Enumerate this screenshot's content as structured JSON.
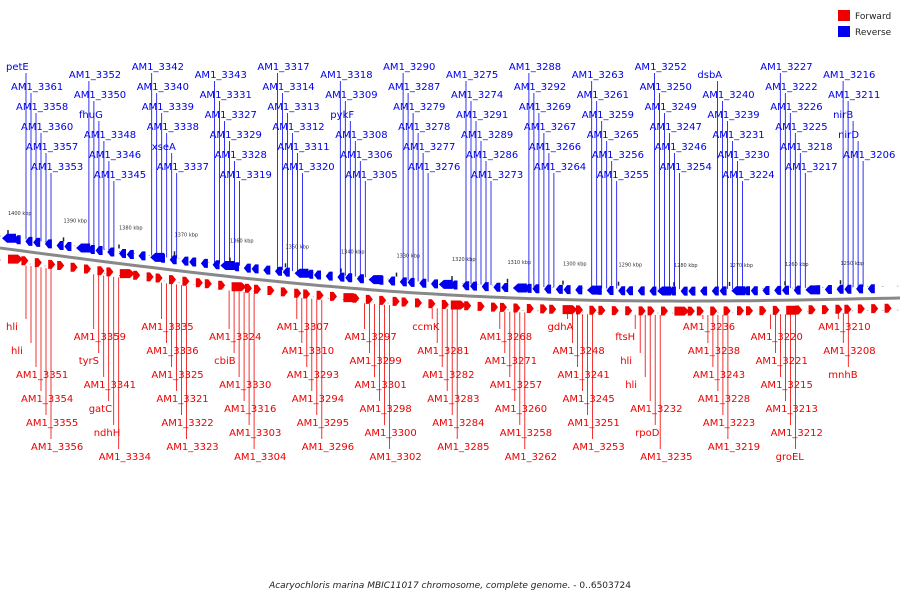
{
  "legend": {
    "forward": {
      "label": "Forward",
      "color": "#ee0000"
    },
    "reverse": {
      "label": "Reverse",
      "color": "#0000ee"
    }
  },
  "caption": {
    "organism": "Acaryochloris marina MBIC11017 chromosome, complete genome.",
    "range": " - 0..6503724"
  },
  "scale_labels": [
    "1400 kbp",
    "1390 kbp",
    "1380 kbp",
    "1370 kbp",
    "1360 kbp",
    "1350 kbp",
    "1340 kbp",
    "1330 kbp",
    "1320 kbp",
    "1310 kbp",
    "1300 kbp",
    "1290 kbp",
    "1280 kbp",
    "1270 kbp",
    "1260 kbp",
    "1250 kbp"
  ],
  "reverse_labels": [
    "petE",
    "AM1_3361",
    "AM1_3358",
    "AM1_3360",
    "AM1_3357",
    "AM1_3353",
    "AM1_3352",
    "AM1_3350",
    "fhuG",
    "AM1_3348",
    "AM1_3346",
    "AM1_3345",
    "AM1_3342",
    "AM1_3340",
    "AM1_3339",
    "AM1_3338",
    "xseA",
    "AM1_3337",
    "AM1_3343",
    "AM1_3331",
    "AM1_3327",
    "AM1_3329",
    "AM1_3328",
    "AM1_3319",
    "AM1_3317",
    "AM1_3314",
    "AM1_3313",
    "AM1_3312",
    "AM1_3311",
    "AM1_3320",
    "AM1_3318",
    "AM1_3309",
    "pykF",
    "AM1_3308",
    "AM1_3306",
    "AM1_3305",
    "AM1_3290",
    "AM1_3287",
    "AM1_3279",
    "AM1_3278",
    "AM1_3277",
    "AM1_3276",
    "AM1_3275",
    "AM1_3274",
    "AM1_3291",
    "AM1_3289",
    "AM1_3286",
    "AM1_3273",
    "AM1_3288",
    "AM1_3292",
    "AM1_3269",
    "AM1_3267",
    "AM1_3266",
    "AM1_3264",
    "AM1_3263",
    "AM1_3261",
    "AM1_3259",
    "AM1_3265",
    "AM1_3256",
    "AM1_3255",
    "AM1_3252",
    "AM1_3250",
    "AM1_3249",
    "AM1_3247",
    "AM1_3246",
    "AM1_3254",
    "dsbA",
    "AM1_3240",
    "AM1_3239",
    "AM1_3231",
    "AM1_3230",
    "AM1_3224",
    "AM1_3227",
    "AM1_3222",
    "AM1_3226",
    "AM1_3225",
    "AM1_3218",
    "AM1_3217",
    "AM1_3216",
    "AM1_3211",
    "nirB",
    "nirD",
    "AM1_3206"
  ],
  "forward_labels": [
    "hli",
    "hli",
    "AM1_3351",
    "AM1_3354",
    "AM1_3355",
    "AM1_3356",
    "AM1_3359",
    "tyrS",
    "AM1_3341",
    "gatC",
    "ndhH",
    "AM1_3334",
    "AM1_3335",
    "AM1_3336",
    "AM1_3325",
    "AM1_3321",
    "AM1_3322",
    "AM1_3323",
    "AM1_3324",
    "cbiB",
    "AM1_3330",
    "AM1_3316",
    "AM1_3303",
    "AM1_3304",
    "AM1_3307",
    "AM1_3310",
    "AM1_3293",
    "AM1_3294",
    "AM1_3295",
    "AM1_3296",
    "AM1_3297",
    "AM1_3299",
    "AM1_3301",
    "AM1_3298",
    "AM1_3300",
    "AM1_3302",
    "ccmK",
    "AM1_3281",
    "AM1_3282",
    "AM1_3283",
    "AM1_3284",
    "AM1_3285",
    "AM1_3268",
    "AM1_3271",
    "AM1_3257",
    "AM1_3260",
    "AM1_3258",
    "AM1_3262",
    "gdhA",
    "AM1_3248",
    "AM1_3241",
    "AM1_3245",
    "AM1_3251",
    "AM1_3253",
    "ftsH",
    "hli",
    "hli",
    "AM1_3232",
    "rpoD",
    "AM1_3235",
    "AM1_3236",
    "AM1_3238",
    "AM1_3243",
    "AM1_3228",
    "AM1_3223",
    "AM1_3219",
    "AM1_3220",
    "AM1_3221",
    "AM1_3215",
    "AM1_3213",
    "AM1_3212",
    "groEL",
    "AM1_3210",
    "AM1_3208",
    "mnhB"
  ]
}
